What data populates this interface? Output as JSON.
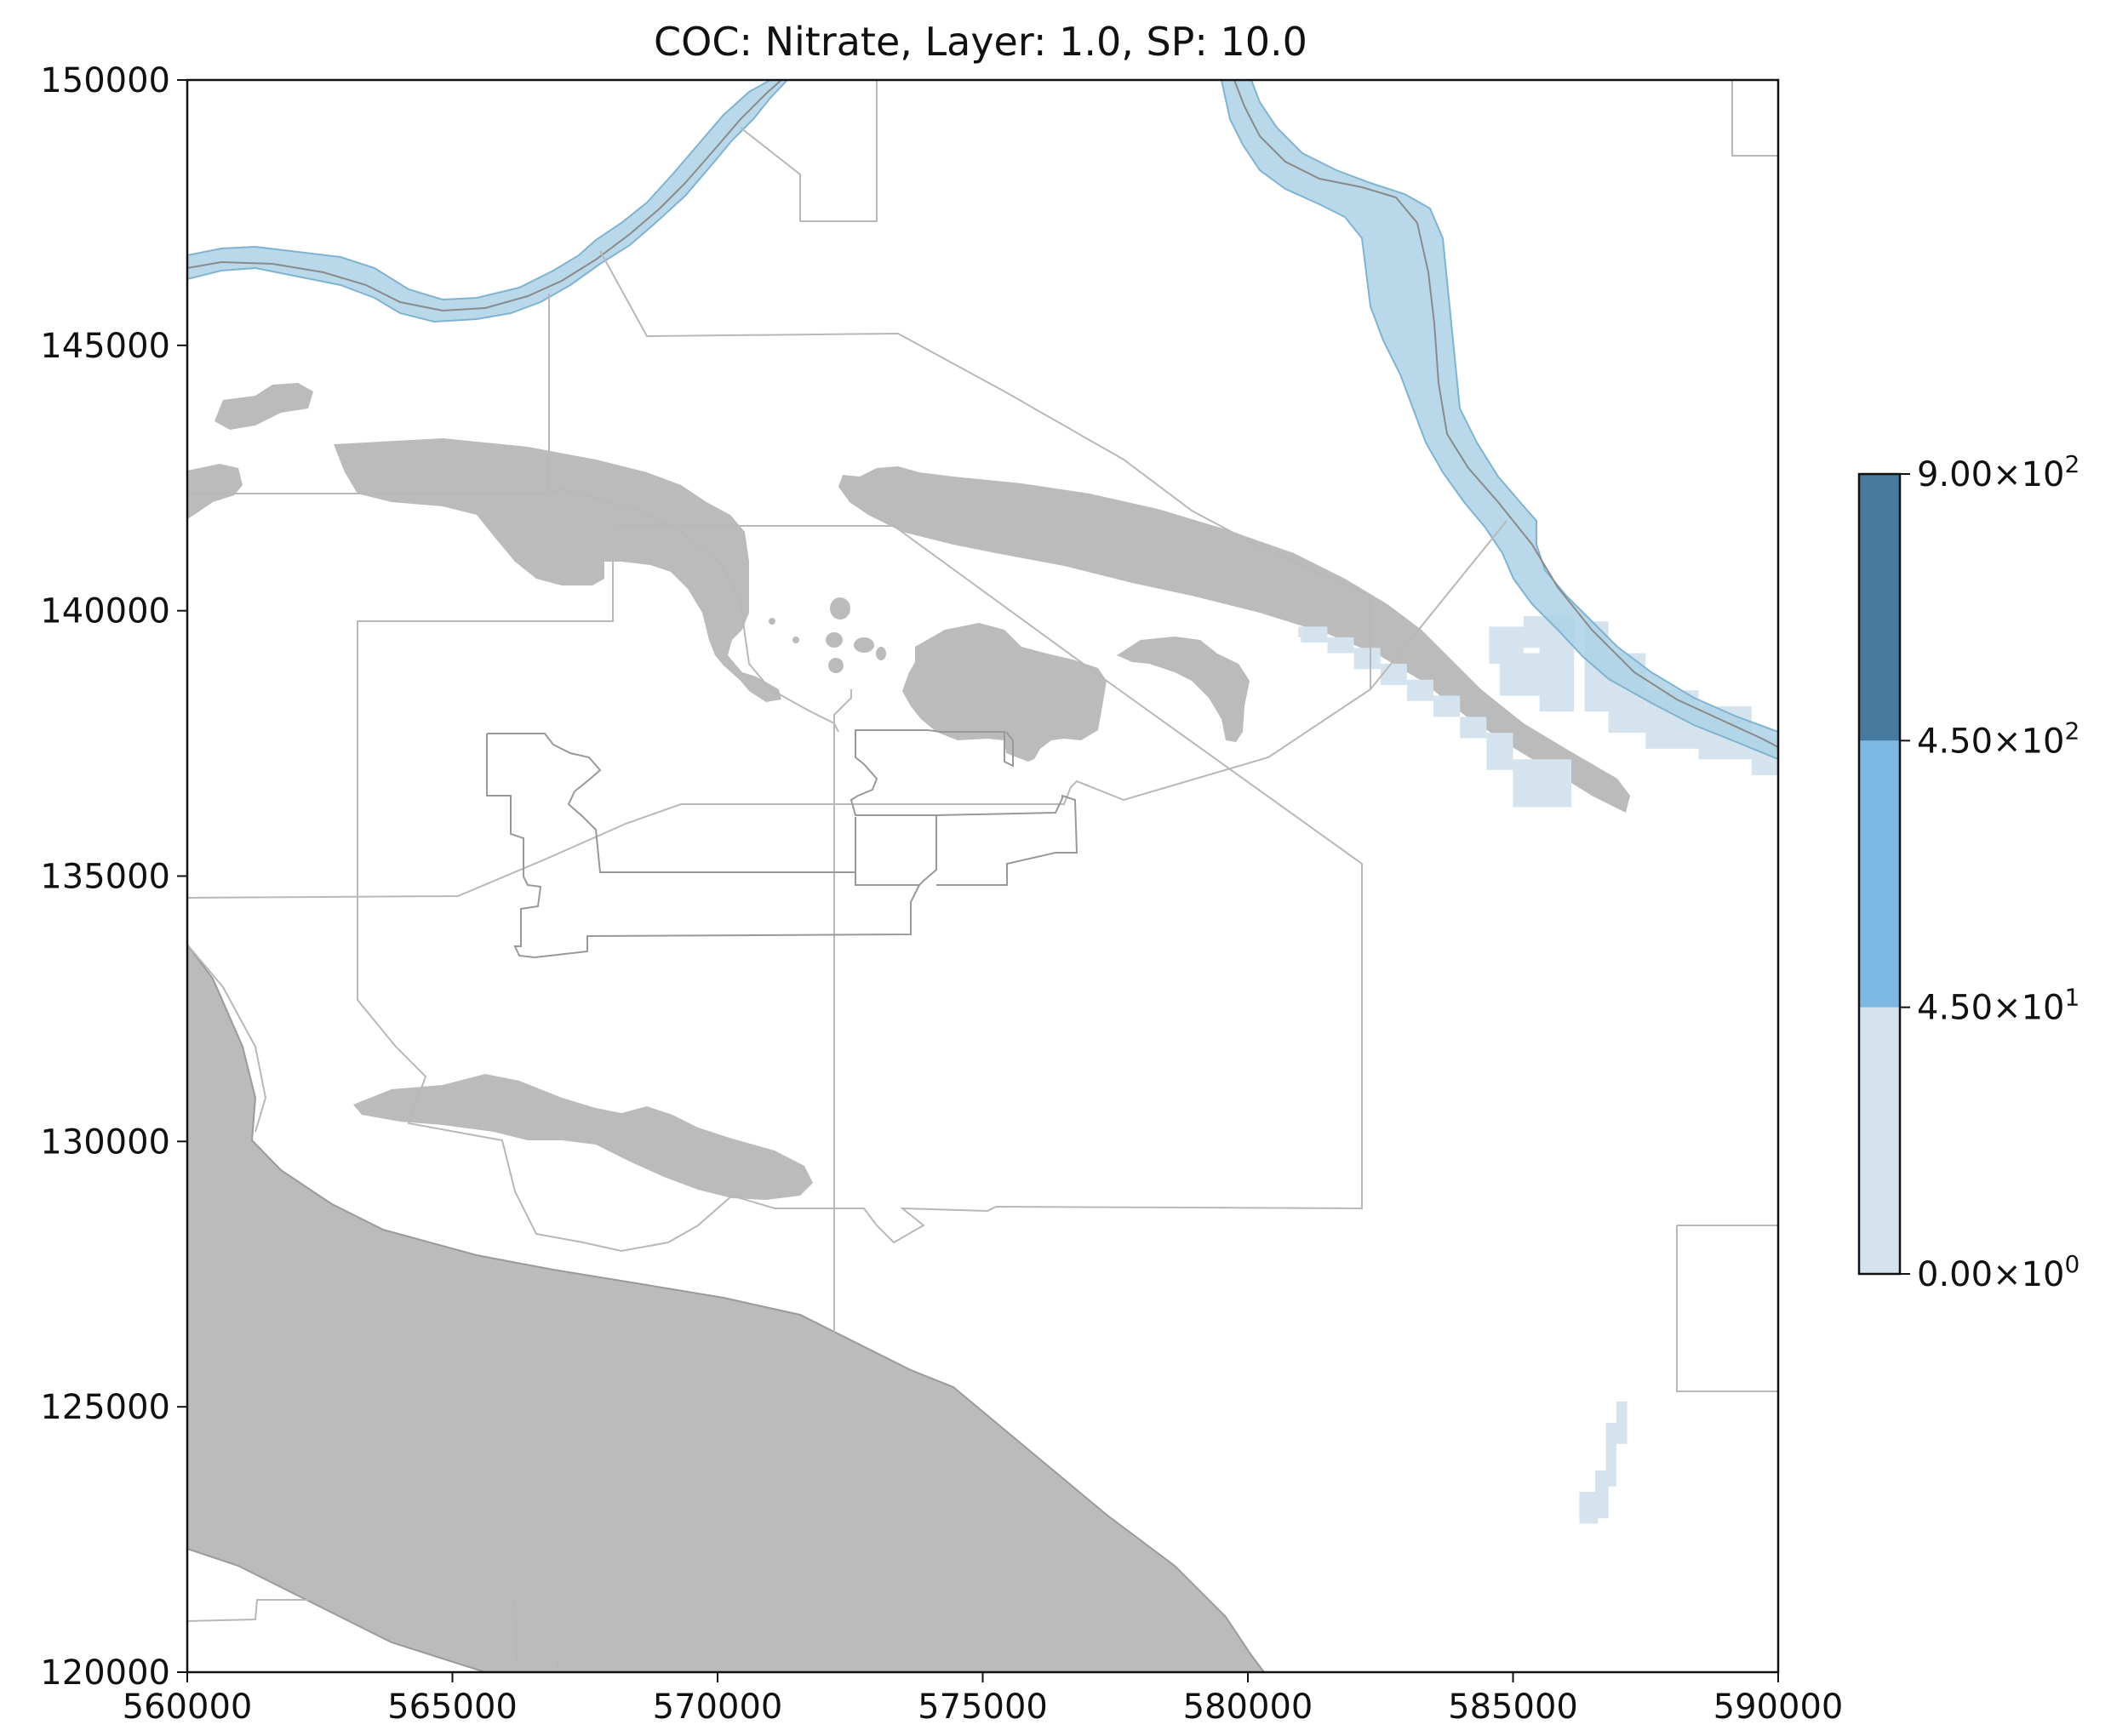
{
  "title": "COC: Nitrate, Layer: 1.0, SP: 10.0",
  "chart_data": {
    "type": "heatmap",
    "title": "COC: Nitrate, Layer: 1.0, SP: 10.0",
    "xlabel": "",
    "ylabel": "",
    "xlim": [
      560000,
      590000
    ],
    "ylim": [
      120000,
      150000
    ],
    "x_ticks": [
      {
        "value": 560000,
        "label": "560000"
      },
      {
        "value": 565000,
        "label": "565000"
      },
      {
        "value": 570000,
        "label": "570000"
      },
      {
        "value": 575000,
        "label": "575000"
      },
      {
        "value": 580000,
        "label": "580000"
      },
      {
        "value": 585000,
        "label": "585000"
      },
      {
        "value": 590000,
        "label": "590000"
      }
    ],
    "y_ticks": [
      {
        "value": 120000,
        "label": "120000"
      },
      {
        "value": 125000,
        "label": "125000"
      },
      {
        "value": 130000,
        "label": "130000"
      },
      {
        "value": 135000,
        "label": "135000"
      },
      {
        "value": 140000,
        "label": "140000"
      },
      {
        "value": 145000,
        "label": "145000"
      },
      {
        "value": 150000,
        "label": "150000"
      }
    ],
    "grid": false,
    "colorbar": {
      "levels": [
        {
          "from": 0,
          "to": 45,
          "color": "#d4e3ee"
        },
        {
          "from": 45,
          "to": 450,
          "color": "#7cb8e3"
        },
        {
          "from": 450,
          "to": 900,
          "color": "#467a9e"
        }
      ],
      "tick_labels": [
        {
          "value": 0,
          "mantissa": "0.00",
          "exponent": "0"
        },
        {
          "value": 45,
          "mantissa": "4.50",
          "exponent": "1"
        },
        {
          "value": 450,
          "mantissa": "4.50",
          "exponent": "2"
        },
        {
          "value": 900,
          "mantissa": "9.00",
          "exponent": "2"
        }
      ]
    },
    "plume_cells": [
      [
        580950,
        139500,
        581000,
        139700
      ],
      [
        581000,
        139400,
        581500,
        139700
      ],
      [
        581500,
        139200,
        582000,
        139500
      ],
      [
        582000,
        138900,
        582500,
        139300
      ],
      [
        582500,
        138600,
        583000,
        139000
      ],
      [
        583000,
        138300,
        583500,
        138700
      ],
      [
        583500,
        138000,
        584000,
        138400
      ],
      [
        584000,
        137600,
        584500,
        138000
      ],
      [
        584500,
        137000,
        585000,
        137700
      ],
      [
        585000,
        136300,
        586100,
        137200
      ],
      [
        584550,
        139000,
        584750,
        139700
      ],
      [
        584750,
        139200,
        585200,
        139700
      ],
      [
        584750,
        138400,
        585500,
        139200
      ],
      [
        585200,
        139300,
        585500,
        139900
      ],
      [
        585500,
        138100,
        586150,
        139900
      ],
      [
        586350,
        138100,
        586800,
        139800
      ],
      [
        586800,
        137700,
        587500,
        139200
      ],
      [
        587500,
        137400,
        588500,
        138500
      ],
      [
        588500,
        137200,
        589500,
        138200
      ],
      [
        589500,
        136900,
        590000,
        137600
      ],
      [
        586950,
        124300,
        587150,
        125100
      ],
      [
        586750,
        123500,
        586950,
        124700
      ],
      [
        586550,
        122900,
        586800,
        123800
      ],
      [
        586250,
        122800,
        586600,
        123400
      ]
    ],
    "plume_level": "0-45"
  },
  "map_layers": {
    "river_fill": "#add2e6",
    "river_edge": "#7fb3d1",
    "centerline": "#8a8a8a",
    "gray_fill": "#bbbbbb",
    "boundary": "#b8b8b8"
  }
}
